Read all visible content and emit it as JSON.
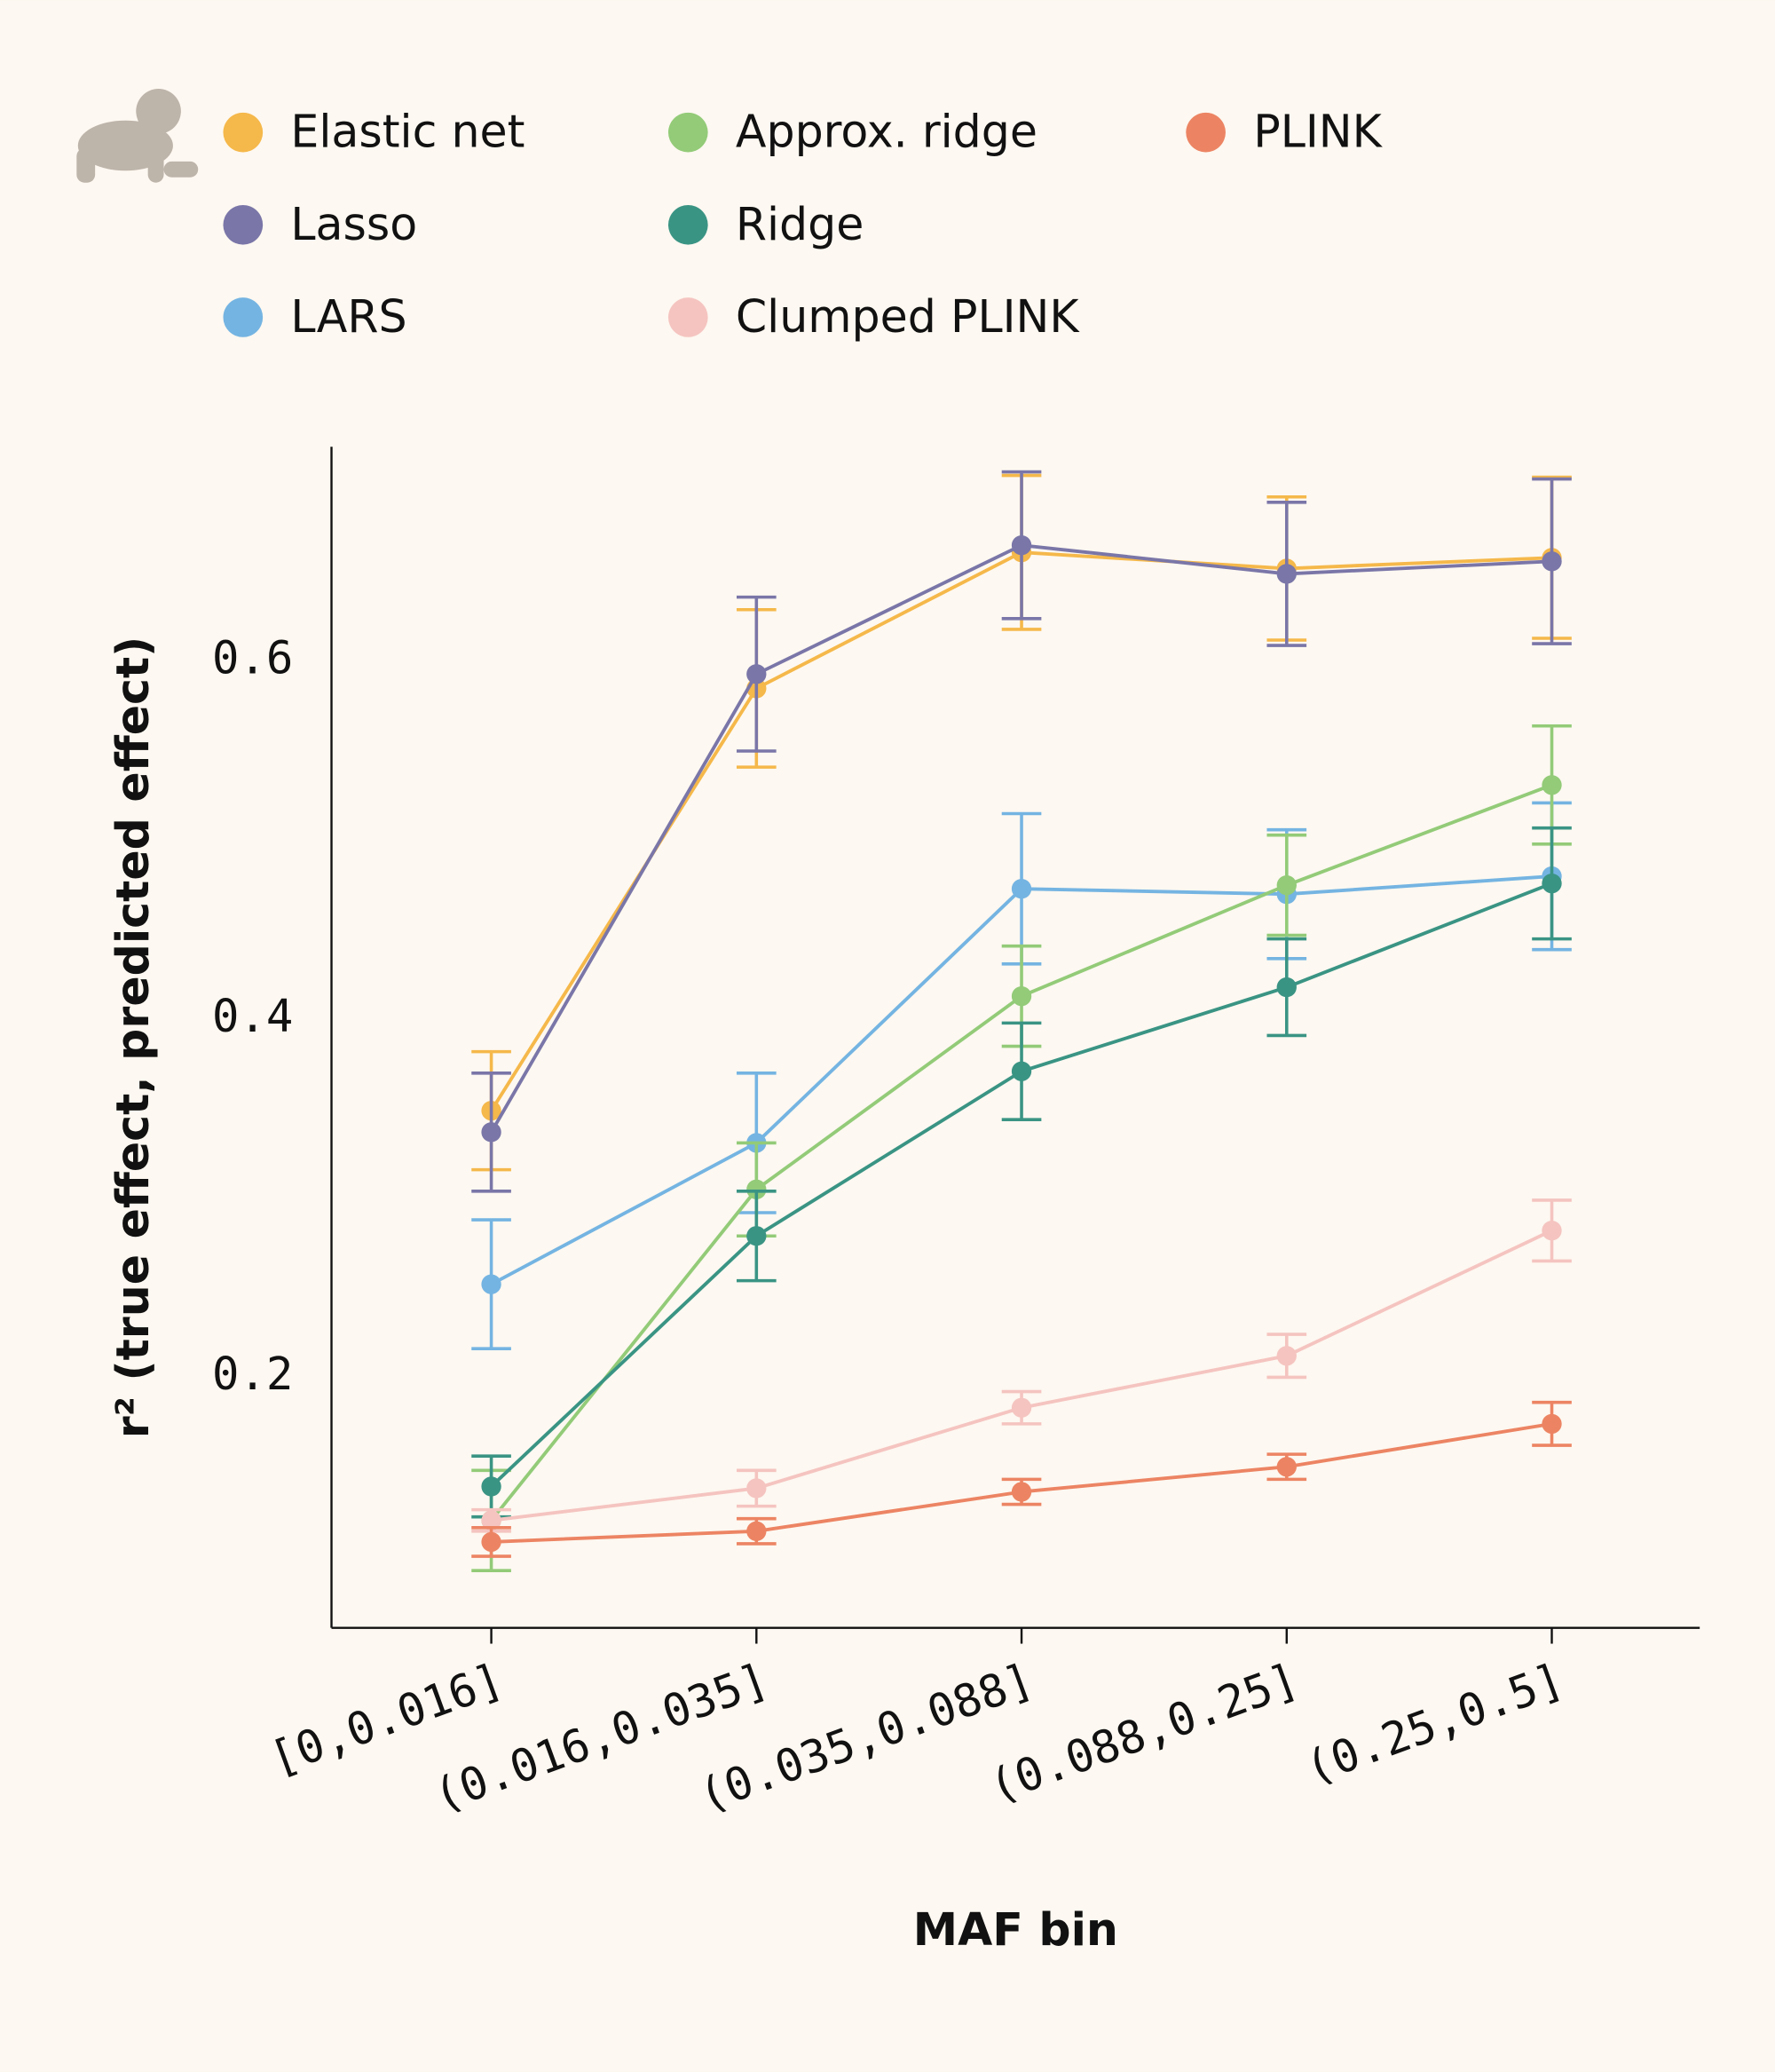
{
  "chart_data": {
    "type": "line",
    "xlabel": "MAF bin",
    "ylabel": "r² (true effect, predicted effect)",
    "categories": [
      "[0,0.016]",
      "(0.016,0.035]",
      "(0.035,0.088]",
      "(0.088,0.25]",
      "(0.25,0.5]"
    ],
    "ylim": [
      0.06,
      0.72
    ],
    "yticks": [
      0.2,
      0.4,
      0.6
    ],
    "grid": false,
    "legend": "top",
    "series": [
      {
        "name": "Elastic net",
        "color": "#f5b84a",
        "values": [
          0.349,
          0.585,
          0.661,
          0.652,
          0.658
        ],
        "errors": [
          0.033,
          0.044,
          0.043,
          0.04,
          0.045
        ]
      },
      {
        "name": "Lasso",
        "color": "#7a76a8",
        "values": [
          0.337,
          0.593,
          0.665,
          0.649,
          0.656
        ],
        "errors": [
          0.033,
          0.043,
          0.041,
          0.04,
          0.046
        ]
      },
      {
        "name": "LARS",
        "color": "#74b4e2",
        "values": [
          0.252,
          0.331,
          0.473,
          0.47,
          0.48
        ],
        "errors": [
          0.036,
          0.039,
          0.042,
          0.036,
          0.041
        ]
      },
      {
        "name": "Approx. ridge",
        "color": "#93cb78",
        "values": [
          0.12,
          0.305,
          0.413,
          0.475,
          0.531
        ],
        "errors": [
          0.028,
          0.026,
          0.028,
          0.028,
          0.033
        ]
      },
      {
        "name": "Ridge",
        "color": "#3a9484",
        "values": [
          0.139,
          0.279,
          0.371,
          0.418,
          0.476
        ],
        "errors": [
          0.017,
          0.025,
          0.027,
          0.027,
          0.031
        ]
      },
      {
        "name": "Clumped PLINK",
        "color": "#f5c4c0",
        "values": [
          0.12,
          0.138,
          0.183,
          0.212,
          0.282
        ],
        "errors": [
          0.006,
          0.01,
          0.009,
          0.012,
          0.017
        ]
      },
      {
        "name": "PLINK",
        "color": "#ec8463",
        "values": [
          0.108,
          0.114,
          0.136,
          0.15,
          0.174
        ],
        "errors": [
          0.008,
          0.007,
          0.007,
          0.007,
          0.012
        ]
      }
    ]
  }
}
